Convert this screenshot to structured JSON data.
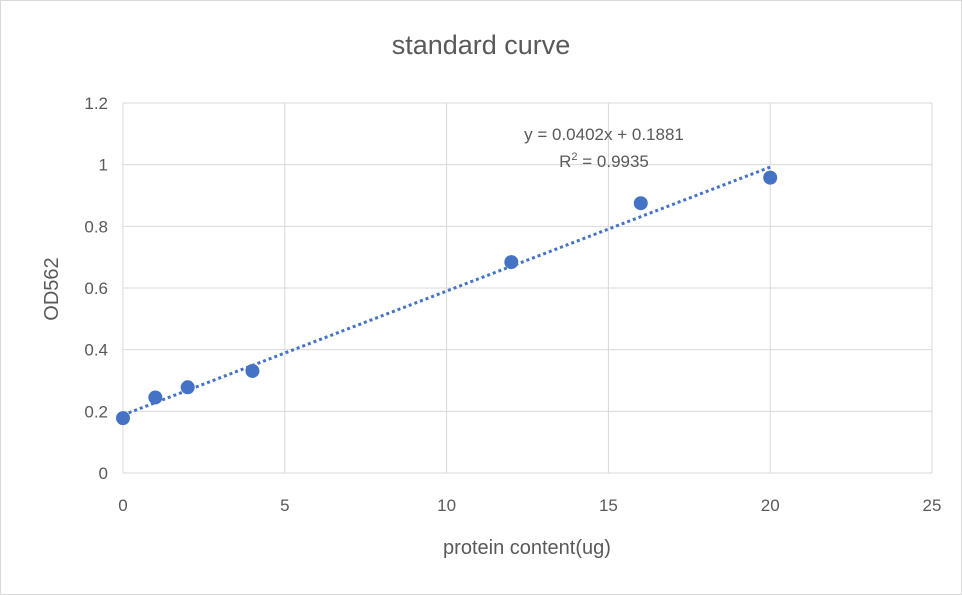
{
  "chart_data": {
    "type": "scatter",
    "title": "standard curve",
    "xlabel": "protein content(ug)",
    "ylabel": "OD562",
    "xlim": [
      0,
      25
    ],
    "ylim": [
      0,
      1.2
    ],
    "x_ticks": [
      "0",
      "5",
      "10",
      "15",
      "20",
      "25"
    ],
    "y_ticks": [
      "0",
      "0.2",
      "0.4",
      "0.6",
      "0.8",
      "1",
      "1.2"
    ],
    "grid": true,
    "points": [
      {
        "x": 0,
        "y": 0.178
      },
      {
        "x": 1,
        "y": 0.245
      },
      {
        "x": 2,
        "y": 0.278
      },
      {
        "x": 4,
        "y": 0.331
      },
      {
        "x": 12,
        "y": 0.684
      },
      {
        "x": 16,
        "y": 0.875
      },
      {
        "x": 20,
        "y": 0.958
      }
    ],
    "trendline": {
      "type": "linear",
      "slope": 0.0402,
      "intercept": 0.1881,
      "x_range": [
        0,
        20
      ],
      "equation_label": "y = 0.0402x + 0.1881",
      "r2_prefix": "R",
      "r2_sup": "2",
      "r2_value": " = 0.9935"
    },
    "colors": {
      "marker": "#4472c4",
      "trendline": "#4472c4",
      "grid": "#d9d9d9",
      "text": "#595959"
    }
  }
}
